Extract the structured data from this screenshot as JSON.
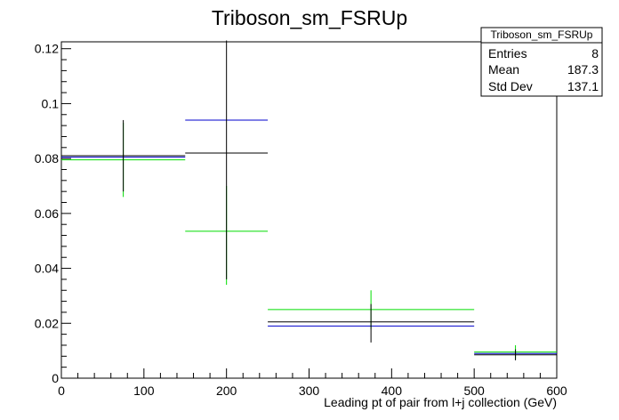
{
  "chart_data": {
    "type": "histogram",
    "title": "Triboson_sm_FSRUp",
    "xlabel": "Leading pt of pair from l+j collection (GeV)",
    "ylabel": "",
    "xlim": [
      0,
      600
    ],
    "ylim": [
      0,
      0.1225
    ],
    "x_ticks": [
      0,
      100,
      200,
      300,
      400,
      500,
      600
    ],
    "x_tick_labels": [
      "0",
      "100",
      "200",
      "300",
      "400",
      "500",
      "600"
    ],
    "y_ticks": [
      0,
      0.02,
      0.04,
      0.06,
      0.08,
      0.1,
      0.12
    ],
    "y_tick_labels": [
      "0",
      "0.02",
      "0.04",
      "0.06",
      "0.08",
      "0.1",
      "0.12"
    ],
    "bins": [
      [
        0,
        150
      ],
      [
        150,
        250
      ],
      [
        250,
        500
      ],
      [
        500,
        600
      ]
    ],
    "series": [
      {
        "color": "#000000",
        "values": [
          0.081,
          0.082,
          0.0205,
          0.0085
        ],
        "errors": [
          [
            0.068,
            0.094
          ],
          [
            0.036,
            0.123
          ],
          [
            0.013,
            0.027
          ],
          [
            0.0065,
            0.0105
          ]
        ]
      },
      {
        "color": "#0000cc",
        "values": [
          0.0805,
          0.094,
          0.019,
          0.009
        ],
        "errors": []
      },
      {
        "color": "#00dd00",
        "values": [
          0.0795,
          0.0535,
          0.025,
          0.0095
        ],
        "errors": [
          [
            0.066,
            0.093
          ],
          [
            0.034,
            0.07
          ],
          [
            0.018,
            0.032
          ],
          [
            0.007,
            0.012
          ]
        ]
      }
    ],
    "stats_box": {
      "title": "Triboson_sm_FSRUp",
      "rows": [
        {
          "label": "Entries",
          "value": "8"
        },
        {
          "label": "Mean",
          "value": "187.3"
        },
        {
          "label": "Std Dev",
          "value": "137.1"
        }
      ]
    }
  }
}
